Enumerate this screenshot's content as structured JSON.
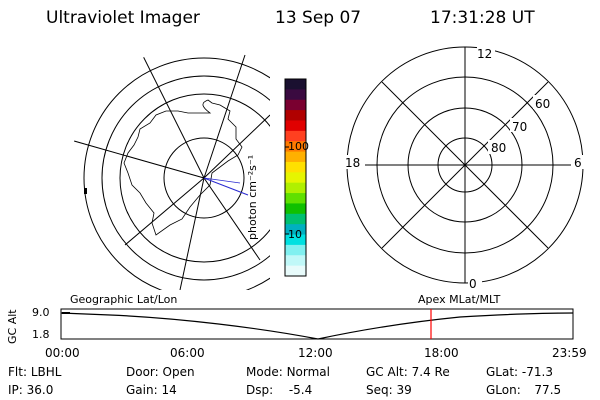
{
  "header": {
    "instrument": "Ultraviolet Imager",
    "date": "13 Sep 07",
    "time": "17:31:28 UT"
  },
  "geo_panel": {
    "title": "Geographic Lat/Lon"
  },
  "color_bar": {
    "unit_label": "photon cm⁻²s⁻¹",
    "tick_100": "100",
    "tick_10": "10",
    "colors": [
      "#1a1030",
      "#3a0a40",
      "#7a0030",
      "#b00000",
      "#e00000",
      "#ff4020",
      "#ff7a00",
      "#ffb000",
      "#ffe000",
      "#e6f500",
      "#b0f000",
      "#60e000",
      "#10c000",
      "#00c070",
      "#00b0c0",
      "#00e0e0",
      "#80f0f0",
      "#c0f8f8",
      "#e8fbfb"
    ]
  },
  "polar_panel": {
    "title": "Apex MLat/MLT",
    "mlt_12": "12",
    "mlt_18": "18",
    "mlt_6": "6",
    "mlt_0": "0",
    "lat_60": "60",
    "lat_70": "70",
    "lat_80": "80"
  },
  "altitude_plot": {
    "axis_label": "GC Alt",
    "y_max": "9.0",
    "y_min": "1.8",
    "x_ticks": [
      "00:00",
      "06:00",
      "12:00",
      "18:00",
      "23:59"
    ],
    "marker_color": "#ff0000"
  },
  "info": {
    "filter_label": "Flt:",
    "filter_value": "LBHL",
    "ip_label": "IP:",
    "ip_value": "36.0",
    "door_label": "Door:",
    "door_value": "Open",
    "gain_label": "Gain:",
    "gain_value": "14",
    "mode_label": "Mode:",
    "mode_value": "Normal",
    "dsp_label": "Dsp:",
    "dsp_value": "-5.4",
    "gcalt_label": "GC Alt:",
    "gcalt_value": "7.4 Re",
    "seq_label": "Seq:",
    "seq_value": "39",
    "glat_label": "GLat:",
    "glat_value": "-71.3",
    "glon_label": "GLon:",
    "glon_value": "77.5"
  }
}
